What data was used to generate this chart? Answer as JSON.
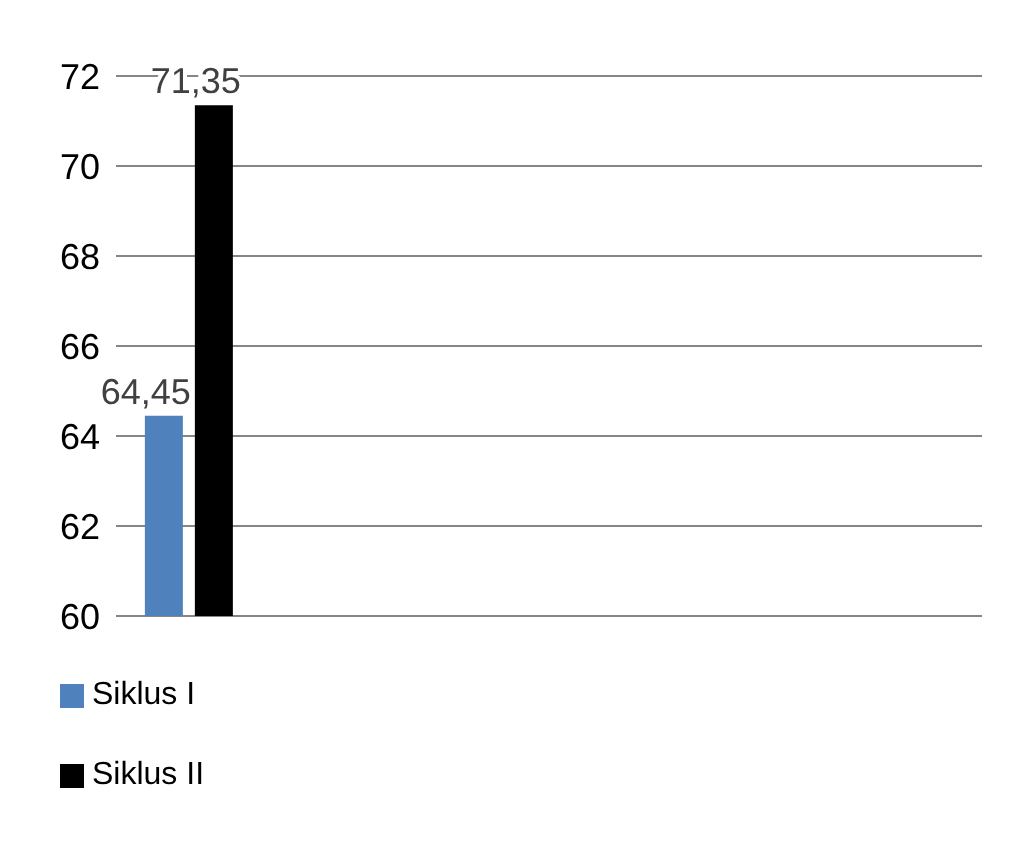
{
  "chart_data": {
    "type": "bar",
    "categories": [
      null,
      null,
      null,
      null,
      null,
      null
    ],
    "series": [
      {
        "name": "Siklus I",
        "color": "#4f81bd",
        "values": [
          64.45,
          null,
          null,
          null,
          null,
          null
        ],
        "value_labels": [
          "64,45",
          null,
          null,
          null,
          null,
          null
        ]
      },
      {
        "name": "Siklus II",
        "color": "#000000",
        "values": [
          71.35,
          null,
          null,
          null,
          null,
          null
        ],
        "value_labels": [
          "71,35",
          null,
          null,
          null,
          null,
          null
        ]
      }
    ],
    "ylim": [
      60,
      72
    ],
    "yticks": [
      60,
      62,
      64,
      66,
      68,
      70,
      72
    ],
    "grid": "y",
    "legend": "bottom left"
  }
}
